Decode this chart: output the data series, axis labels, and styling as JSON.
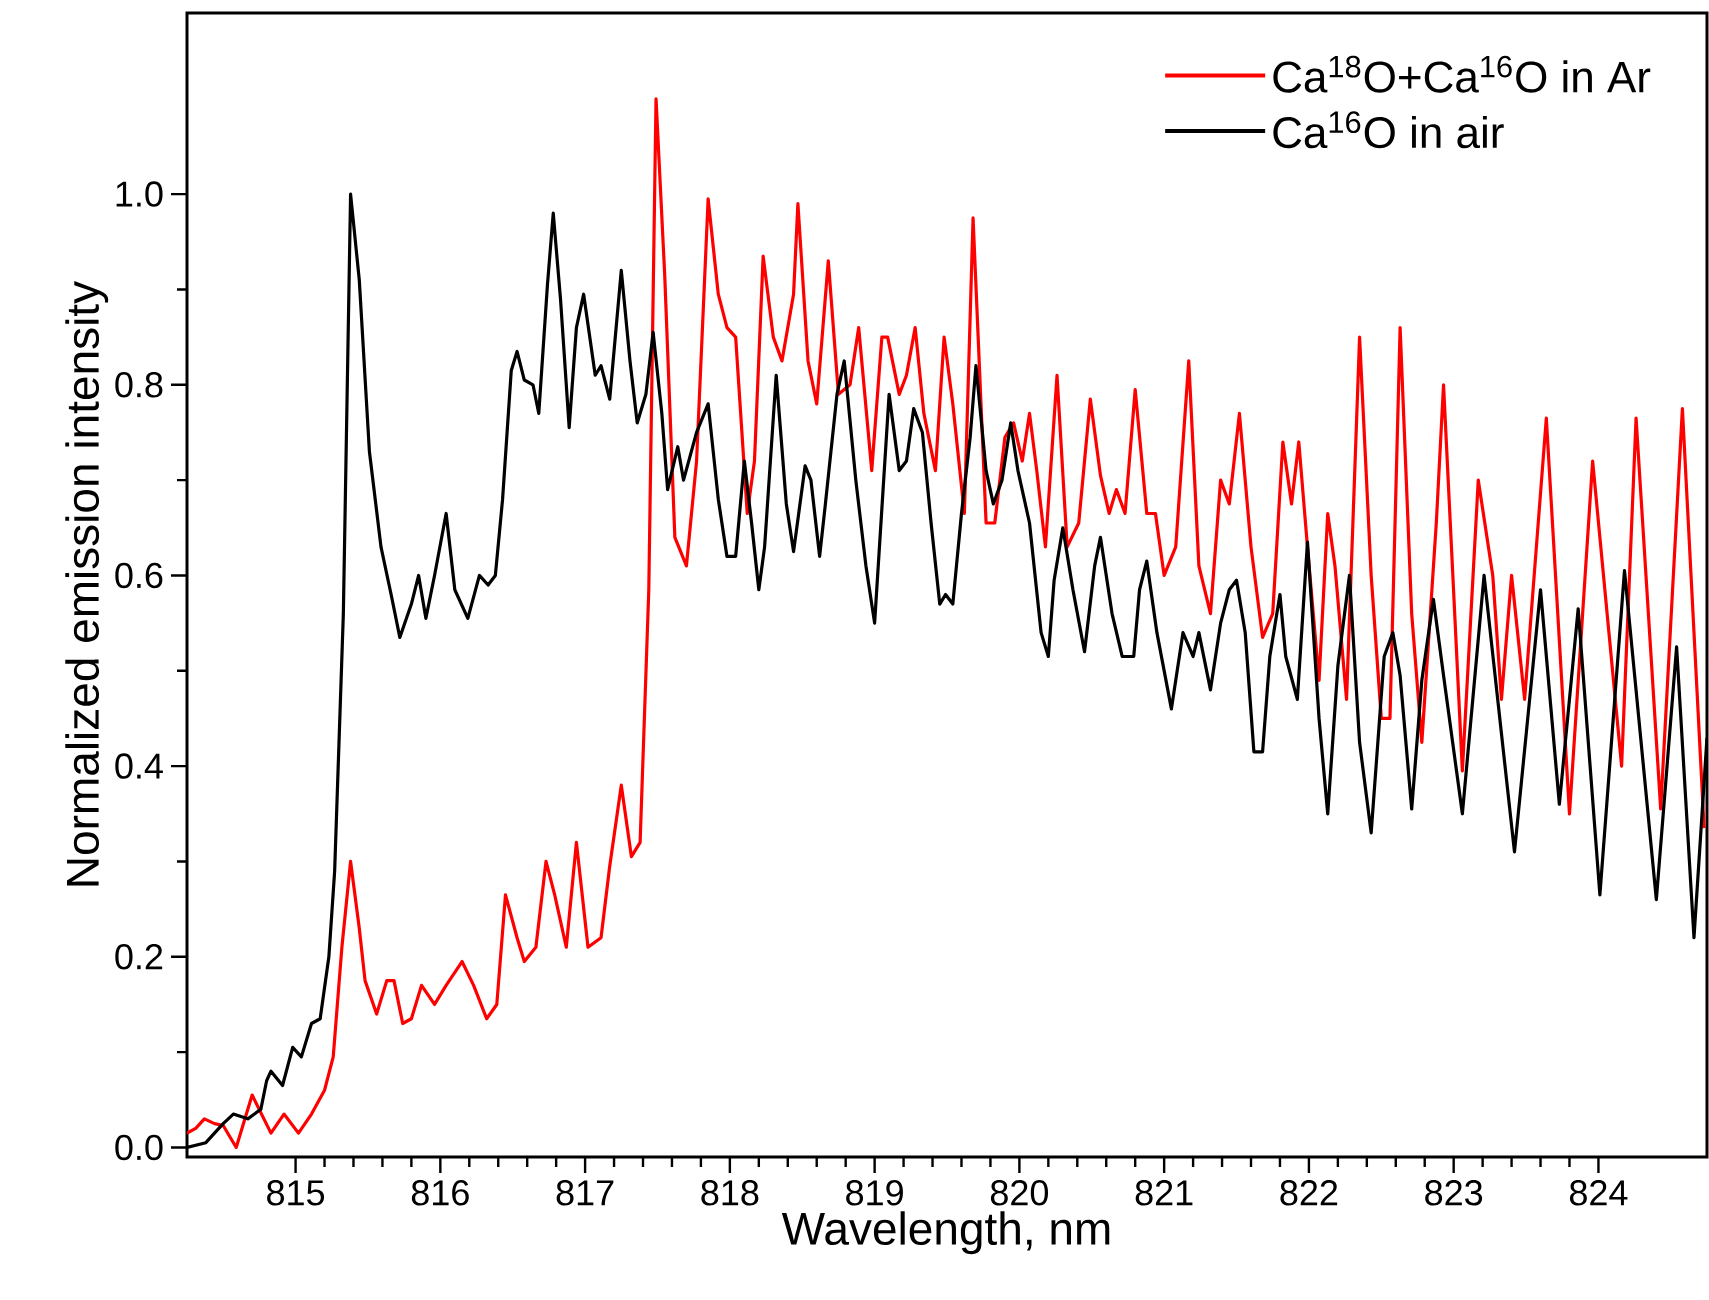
{
  "chart_data": {
    "type": "line",
    "xlabel": "Wavelength, nm",
    "ylabel": "Normalized emission intensity",
    "xlim": [
      814.25,
      824.75
    ],
    "ylim": [
      -0.01,
      1.19
    ],
    "xticks": [
      815,
      816,
      817,
      818,
      819,
      820,
      821,
      822,
      823,
      824
    ],
    "yticks": [
      {
        "value": 0,
        "label": "0.0"
      },
      {
        "value": 0.2,
        "label": "0.2"
      },
      {
        "value": 0.4,
        "label": "0.4"
      },
      {
        "value": 0.6,
        "label": "0.6"
      },
      {
        "value": 0.8,
        "label": "0.8"
      },
      {
        "value": 1.0,
        "label": "1.0"
      }
    ],
    "legend": "top right",
    "series": [
      {
        "name": "Ca$^{18}$O+Ca$^{16}$O in Ar",
        "color": "#ff0000",
        "x": [
          814.25,
          814.31,
          814.37,
          814.44,
          814.5,
          814.59,
          814.7,
          814.83,
          814.92,
          815.02,
          815.11,
          815.2,
          815.26,
          815.32,
          815.38,
          815.44,
          815.48,
          815.56,
          815.63,
          815.68,
          815.74,
          815.8,
          815.87,
          815.96,
          816.04,
          816.15,
          816.23,
          816.32,
          816.39,
          816.45,
          816.53,
          816.58,
          816.66,
          816.73,
          816.79,
          816.87,
          816.94,
          817.02,
          817.11,
          817.17,
          817.25,
          817.32,
          817.38,
          817.44,
          817.49,
          817.55,
          817.62,
          817.7,
          817.77,
          817.85,
          817.92,
          817.98,
          818.04,
          818.12,
          818.17,
          818.23,
          818.3,
          818.36,
          818.44,
          818.47,
          818.54,
          818.6,
          818.68,
          818.75,
          818.83,
          818.89,
          818.98,
          819.05,
          819.09,
          819.17,
          819.22,
          819.28,
          819.34,
          819.42,
          819.48,
          819.54,
          819.62,
          819.68,
          819.77,
          819.83,
          819.9,
          819.96,
          820.02,
          820.07,
          820.12,
          820.18,
          820.26,
          820.33,
          820.41,
          820.49,
          820.56,
          820.62,
          820.67,
          820.73,
          820.8,
          820.88,
          820.94,
          821.0,
          821.08,
          821.17,
          821.24,
          821.32,
          821.39,
          821.45,
          821.52,
          821.6,
          821.68,
          821.75,
          821.82,
          821.88,
          821.93,
          821.99,
          822.07,
          822.13,
          822.18,
          822.26,
          822.35,
          822.43,
          822.5,
          822.56,
          822.63,
          822.71,
          822.78,
          822.88,
          822.93,
          823.06,
          823.17,
          823.27,
          823.33,
          823.4,
          823.49,
          823.64,
          823.8,
          823.96,
          824.16,
          824.26,
          824.43,
          824.58,
          824.73
        ],
        "values": [
          0.015,
          0.02,
          0.03,
          0.025,
          0.023,
          0.0,
          0.055,
          0.015,
          0.035,
          0.015,
          0.035,
          0.06,
          0.095,
          0.21,
          0.3,
          0.23,
          0.175,
          0.14,
          0.175,
          0.175,
          0.13,
          0.135,
          0.17,
          0.15,
          0.17,
          0.195,
          0.17,
          0.135,
          0.15,
          0.265,
          0.22,
          0.195,
          0.21,
          0.3,
          0.265,
          0.21,
          0.32,
          0.21,
          0.22,
          0.295,
          0.38,
          0.305,
          0.32,
          0.585,
          1.1,
          0.915,
          0.64,
          0.61,
          0.72,
          0.995,
          0.895,
          0.86,
          0.85,
          0.665,
          0.72,
          0.935,
          0.85,
          0.825,
          0.895,
          0.99,
          0.825,
          0.78,
          0.93,
          0.79,
          0.8,
          0.86,
          0.71,
          0.85,
          0.85,
          0.79,
          0.81,
          0.86,
          0.77,
          0.71,
          0.85,
          0.78,
          0.665,
          0.975,
          0.655,
          0.655,
          0.745,
          0.76,
          0.72,
          0.77,
          0.71,
          0.63,
          0.81,
          0.63,
          0.655,
          0.785,
          0.705,
          0.665,
          0.69,
          0.665,
          0.795,
          0.665,
          0.665,
          0.6,
          0.63,
          0.825,
          0.61,
          0.56,
          0.7,
          0.675,
          0.77,
          0.63,
          0.535,
          0.56,
          0.74,
          0.675,
          0.74,
          0.63,
          0.49,
          0.665,
          0.61,
          0.47,
          0.85,
          0.6,
          0.45,
          0.45,
          0.86,
          0.56,
          0.425,
          0.655,
          0.8,
          0.395,
          0.7,
          0.6,
          0.47,
          0.6,
          0.47,
          0.765,
          0.35,
          0.72,
          0.4,
          0.765,
          0.355,
          0.775,
          0.335
        ]
      },
      {
        "name": "Ca$^{16}$O in air",
        "color": "#000000",
        "x": [
          814.25,
          814.38,
          814.5,
          814.57,
          814.67,
          814.76,
          814.8,
          814.83,
          814.91,
          814.98,
          815.04,
          815.11,
          815.17,
          815.23,
          815.27,
          815.33,
          815.38,
          815.44,
          815.51,
          815.59,
          815.66,
          815.72,
          815.8,
          815.85,
          815.9,
          815.96,
          816.04,
          816.1,
          816.19,
          816.27,
          816.33,
          816.38,
          816.43,
          816.49,
          816.53,
          816.58,
          816.64,
          816.68,
          816.74,
          816.78,
          816.83,
          816.89,
          816.94,
          816.99,
          817.07,
          817.11,
          817.17,
          817.25,
          817.31,
          817.36,
          817.42,
          817.47,
          817.53,
          817.57,
          817.64,
          817.68,
          817.77,
          817.85,
          817.92,
          817.98,
          818.04,
          818.1,
          818.15,
          818.2,
          818.24,
          818.32,
          818.39,
          818.44,
          818.52,
          818.56,
          818.62,
          818.66,
          818.74,
          818.79,
          818.87,
          818.94,
          819.0,
          819.05,
          819.1,
          819.17,
          819.22,
          819.27,
          819.33,
          819.39,
          819.45,
          819.49,
          819.54,
          819.6,
          819.66,
          819.7,
          819.77,
          819.82,
          819.88,
          819.94,
          819.99,
          820.07,
          820.15,
          820.2,
          820.24,
          820.3,
          820.37,
          820.45,
          820.52,
          820.56,
          820.64,
          820.71,
          820.79,
          820.83,
          820.88,
          820.95,
          821.05,
          821.13,
          821.2,
          821.24,
          821.32,
          821.39,
          821.45,
          821.5,
          821.56,
          821.62,
          821.68,
          821.73,
          821.8,
          821.84,
          821.92,
          821.99,
          822.07,
          822.13,
          822.2,
          822.28,
          822.35,
          822.43,
          822.52,
          822.58,
          822.63,
          822.71,
          822.78,
          822.86,
          822.93,
          823.06,
          823.21,
          823.42,
          823.6,
          823.73,
          823.86,
          824.01,
          824.18,
          824.4,
          824.54,
          824.66,
          824.75
        ],
        "values": [
          0.0,
          0.005,
          0.025,
          0.035,
          0.03,
          0.04,
          0.07,
          0.08,
          0.065,
          0.105,
          0.095,
          0.13,
          0.135,
          0.2,
          0.29,
          0.56,
          1.0,
          0.91,
          0.73,
          0.63,
          0.58,
          0.535,
          0.57,
          0.6,
          0.555,
          0.6,
          0.665,
          0.585,
          0.555,
          0.6,
          0.59,
          0.6,
          0.68,
          0.815,
          0.835,
          0.805,
          0.8,
          0.77,
          0.905,
          0.98,
          0.89,
          0.755,
          0.86,
          0.895,
          0.81,
          0.82,
          0.785,
          0.92,
          0.825,
          0.76,
          0.79,
          0.855,
          0.77,
          0.69,
          0.735,
          0.7,
          0.75,
          0.78,
          0.68,
          0.62,
          0.62,
          0.72,
          0.655,
          0.585,
          0.63,
          0.81,
          0.675,
          0.625,
          0.715,
          0.7,
          0.62,
          0.675,
          0.79,
          0.825,
          0.7,
          0.61,
          0.55,
          0.67,
          0.79,
          0.71,
          0.72,
          0.775,
          0.75,
          0.655,
          0.57,
          0.58,
          0.57,
          0.665,
          0.745,
          0.82,
          0.71,
          0.675,
          0.7,
          0.76,
          0.71,
          0.655,
          0.54,
          0.515,
          0.595,
          0.65,
          0.585,
          0.52,
          0.61,
          0.64,
          0.56,
          0.515,
          0.515,
          0.585,
          0.615,
          0.54,
          0.46,
          0.54,
          0.515,
          0.54,
          0.48,
          0.55,
          0.585,
          0.595,
          0.54,
          0.415,
          0.415,
          0.515,
          0.58,
          0.515,
          0.47,
          0.635,
          0.45,
          0.35,
          0.505,
          0.6,
          0.425,
          0.33,
          0.515,
          0.54,
          0.495,
          0.355,
          0.49,
          0.575,
          0.495,
          0.35,
          0.6,
          0.31,
          0.585,
          0.36,
          0.565,
          0.265,
          0.605,
          0.26,
          0.525,
          0.22,
          0.43
        ]
      }
    ]
  }
}
